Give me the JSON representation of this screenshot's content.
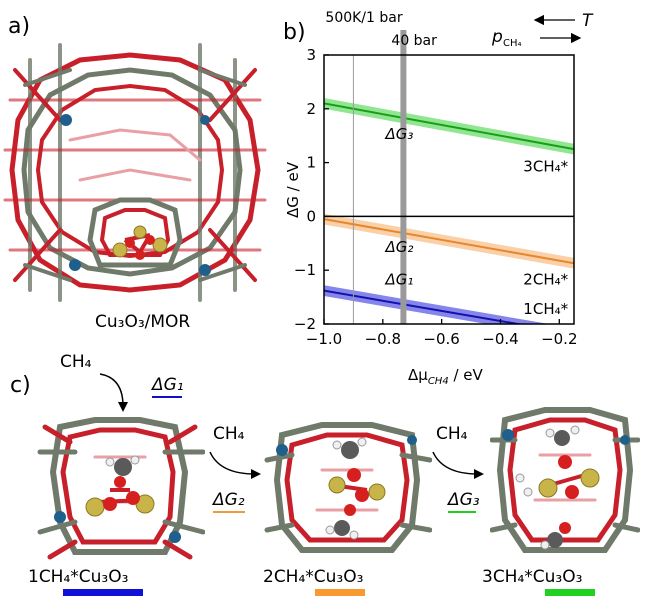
{
  "panels": {
    "a": {
      "letter": "a)",
      "caption": "Cu₃O₃/MOR"
    },
    "b": {
      "letter": "b)",
      "label_500k": "500K/1 bar",
      "label_40bar": "40 bar",
      "arrow_T": "T",
      "arrow_p": "p",
      "arrow_p_sub": "CH₄",
      "annotations": [
        "ΔG₃",
        "ΔG₂",
        "ΔG₁",
        "3CH₄*",
        "2CH₄*",
        "1CH₄*"
      ]
    },
    "c": {
      "letter": "c)",
      "steps": [
        {
          "reactant": "CH₄",
          "dG": "ΔG₁",
          "color": "#1010c8"
        },
        {
          "reactant": "CH₄",
          "dG": "ΔG₂",
          "color": "#f29a3a"
        },
        {
          "reactant": "CH₄",
          "dG": "ΔG₃",
          "color": "#22cc22"
        }
      ],
      "captions": [
        {
          "text": "1CH₄*Cu₃O₃",
          "color": "#1010d8"
        },
        {
          "text": "2CH₄*Cu₃O₃",
          "color": "#f79a30"
        },
        {
          "text": "3CH₄*Cu₃O₃",
          "color": "#22d022"
        }
      ]
    }
  },
  "chart_data": {
    "type": "line",
    "xlabel": "Δμ",
    "xlabel_sub": "CH4",
    "xlabel_unit": " / eV",
    "ylabel": "ΔG / eV",
    "xlim": [
      -1.0,
      -0.15
    ],
    "ylim": [
      -2,
      3
    ],
    "xticks": [
      -1.0,
      -0.8,
      -0.6,
      -0.4,
      -0.2
    ],
    "xtick_labels": [
      "−1.0",
      "−0.8",
      "−0.6",
      "−0.4",
      "−0.2"
    ],
    "yticks": [
      -2,
      -1,
      0,
      1,
      2,
      3
    ],
    "ytick_labels": [
      "−2",
      "−1",
      "0",
      "1",
      "2",
      "3"
    ],
    "hlines": [
      0
    ],
    "vlines": [
      {
        "x": -0.9,
        "label": "500K/1 bar"
      },
      {
        "x": -0.73,
        "label": "40 bar"
      }
    ],
    "series": [
      {
        "name": "3CH4*",
        "x": [
          -1.0,
          -0.15
        ],
        "y": [
          2.1,
          1.25
        ],
        "band": 0.1,
        "color": "#1a9e1a",
        "band_color": "#7ee27e"
      },
      {
        "name": "2CH4*",
        "x": [
          -1.0,
          -0.15
        ],
        "y": [
          -0.05,
          -0.87
        ],
        "band": 0.1,
        "color": "#e8862a",
        "band_color": "#f8c898"
      },
      {
        "name": "1CH4*",
        "x": [
          -1.0,
          -0.15
        ],
        "y": [
          -1.38,
          -2.18
        ],
        "band": 0.1,
        "color": "#1212a8",
        "band_color": "#7070e8"
      }
    ],
    "annotations": [
      {
        "text": "ΔG₃",
        "x": -0.92,
        "y": 1.55
      },
      {
        "text": "ΔG₂",
        "x": -0.92,
        "y": -0.55
      },
      {
        "text": "ΔG₁",
        "x": -0.92,
        "y": -1.15
      },
      {
        "text": "3CH₄*",
        "x": -0.17,
        "y": 0.95
      },
      {
        "text": "2CH₄*",
        "x": -0.17,
        "y": -1.15
      },
      {
        "text": "1CH₄*",
        "x": -0.17,
        "y": -1.7
      }
    ]
  }
}
